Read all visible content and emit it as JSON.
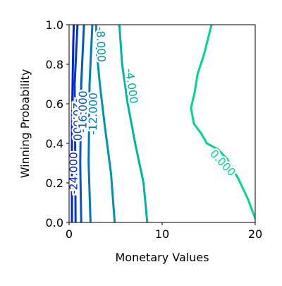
{
  "chart_data": {
    "type": "contour",
    "xlabel": "Monetary Values",
    "ylabel": "Winning Probability",
    "xlim": [
      0,
      20
    ],
    "ylim": [
      0,
      1
    ],
    "x_ticks": [
      0,
      10,
      20
    ],
    "x_tick_labels": [
      "0",
      "10",
      "20"
    ],
    "y_ticks": [
      0.0,
      0.2,
      0.4,
      0.6,
      0.8,
      1.0
    ],
    "y_tick_labels": [
      "0.0",
      "0.2",
      "0.4",
      "0.6",
      "0.8",
      "1.0"
    ],
    "grid": false,
    "legend": "none",
    "levels": [
      {
        "level": -24.0,
        "label": "-24.000",
        "color": "#0022dd",
        "points": [
          [
            0.3,
            0
          ],
          [
            0.3,
            0.5
          ],
          [
            0.45,
            0.9
          ],
          [
            0.5,
            1.0
          ]
        ],
        "label_at": [
          0.5,
          0.25
        ]
      },
      {
        "level": -20.0,
        "label": "-20.000",
        "color": "#0038d8",
        "points": [
          [
            0.7,
            0
          ],
          [
            0.65,
            0.4
          ],
          [
            0.6,
            0.7
          ],
          [
            0.9,
            1.0
          ]
        ],
        "label_at": [
          0.85,
          0.52
        ]
      },
      {
        "level": -16.0,
        "label": "-16.000",
        "color": "#0058cc",
        "points": [
          [
            1.3,
            0
          ],
          [
            1.2,
            0.3
          ],
          [
            1.3,
            0.7
          ],
          [
            1.6,
            1.0
          ]
        ],
        "label_at": [
          1.5,
          0.56
        ]
      },
      {
        "level": -12.0,
        "label": "-12.000",
        "color": "#0078bd",
        "points": [
          [
            2.3,
            0
          ],
          [
            2.1,
            0.3
          ],
          [
            2.2,
            0.7
          ],
          [
            2.5,
            1.0
          ]
        ],
        "label_at": [
          2.6,
          0.55
        ]
      },
      {
        "level": -8.0,
        "label": "-8.000",
        "color": "#0094b0",
        "points": [
          [
            4.9,
            0
          ],
          [
            4.5,
            0.25
          ],
          [
            3.8,
            0.5
          ],
          [
            3.3,
            0.7
          ],
          [
            3.0,
            0.85
          ],
          [
            2.9,
            1.0
          ]
        ],
        "label_at": [
          3.4,
          0.9
        ]
      },
      {
        "level": -4.0,
        "label": "-4.000",
        "color": "#00b5a0",
        "points": [
          [
            8.4,
            0
          ],
          [
            8.0,
            0.2
          ],
          [
            7.1,
            0.4
          ],
          [
            6.3,
            0.6
          ],
          [
            5.7,
            0.8
          ],
          [
            5.4,
            1.0
          ]
        ],
        "label_at": [
          6.7,
          0.69
        ]
      },
      {
        "level": 0.0,
        "label": "0.000",
        "color": "#00d890",
        "points": [
          [
            20.0,
            0.02
          ],
          [
            19.2,
            0.12
          ],
          [
            18.2,
            0.22
          ],
          [
            17.0,
            0.32
          ],
          [
            16.0,
            0.37
          ],
          [
            14.8,
            0.4
          ],
          [
            14.2,
            0.45
          ],
          [
            13.4,
            0.5
          ],
          [
            13.1,
            0.58
          ],
          [
            13.5,
            0.66
          ],
          [
            13.8,
            0.75
          ],
          [
            14.5,
            0.85
          ],
          [
            15.3,
            1.0
          ]
        ],
        "label_at": [
          16.5,
          0.3
        ]
      }
    ]
  }
}
